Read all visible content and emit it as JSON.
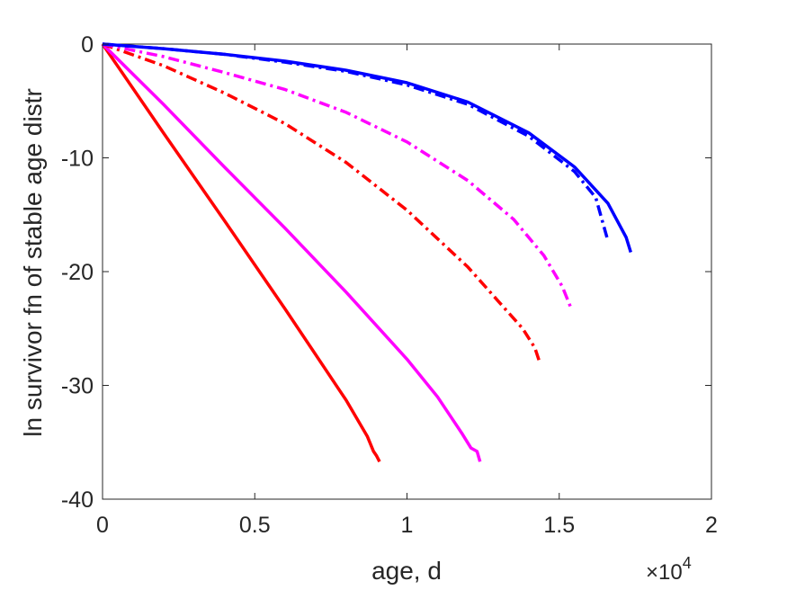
{
  "chart_data": {
    "type": "line",
    "title": "",
    "xlabel": "age, d",
    "ylabel": "ln survivor fn of stable age distr",
    "x_multiplier": "×10",
    "x_multiplier_exp": "4",
    "xlim": [
      0,
      20000
    ],
    "ylim": [
      -40,
      0
    ],
    "xticks": [
      0,
      5000,
      10000,
      15000,
      20000
    ],
    "xtick_labels": [
      "0",
      "0.5",
      "1",
      "1.5",
      "2"
    ],
    "yticks": [
      0,
      -10,
      -20,
      -30,
      -40
    ],
    "ytick_labels": [
      "0",
      "-10",
      "-20",
      "-30",
      "-40"
    ],
    "grid": false,
    "legend": "none",
    "series": [
      {
        "color": "#ff0000",
        "style": "solid",
        "x": [
          0,
          2000,
          4000,
          6000,
          8000,
          8700,
          8900,
          9000,
          9100
        ],
        "y": [
          0,
          -7.8,
          -15.5,
          -23.3,
          -31.3,
          -34.5,
          -35.8,
          -36.2,
          -36.7
        ]
      },
      {
        "color": "#ff00ff",
        "style": "solid",
        "x": [
          0,
          2000,
          4000,
          6000,
          8000,
          10000,
          11000,
          11800,
          12100,
          12300,
          12400
        ],
        "y": [
          0,
          -5.3,
          -10.8,
          -16.2,
          -21.8,
          -27.7,
          -31.0,
          -34.2,
          -35.5,
          -35.8,
          -36.7
        ]
      },
      {
        "color": "#ff0000",
        "style": "dashdot",
        "x": [
          0,
          2000,
          4000,
          6000,
          8000,
          10000,
          12000,
          13000,
          13800,
          14200,
          14350
        ],
        "y": [
          0,
          -1.9,
          -4.3,
          -7.0,
          -10.4,
          -14.6,
          -19.6,
          -22.6,
          -25.0,
          -26.7,
          -27.9
        ]
      },
      {
        "color": "#ff00ff",
        "style": "dashdot",
        "x": [
          0,
          2000,
          4000,
          6000,
          8000,
          10000,
          12000,
          13500,
          14500,
          15100,
          15400
        ],
        "y": [
          0,
          -1.1,
          -2.5,
          -4.0,
          -6.0,
          -8.6,
          -12.0,
          -15.4,
          -18.6,
          -21.3,
          -23.3
        ]
      },
      {
        "color": "#0000ff",
        "style": "dashdot",
        "x": [
          0,
          2000,
          4000,
          6000,
          8000,
          10000,
          12000,
          14000,
          15500,
          16200,
          16600
        ],
        "y": [
          0,
          -0.4,
          -0.9,
          -1.6,
          -2.4,
          -3.6,
          -5.3,
          -8.1,
          -11.2,
          -13.5,
          -17.3
        ]
      },
      {
        "color": "#0000ff",
        "style": "solid",
        "x": [
          0,
          2000,
          4000,
          6000,
          8000,
          10000,
          12000,
          14000,
          15500,
          16600,
          17200,
          17350
        ],
        "y": [
          0,
          -0.4,
          -0.9,
          -1.5,
          -2.3,
          -3.4,
          -5.1,
          -7.8,
          -10.8,
          -14.0,
          -17.0,
          -18.3
        ]
      }
    ]
  }
}
